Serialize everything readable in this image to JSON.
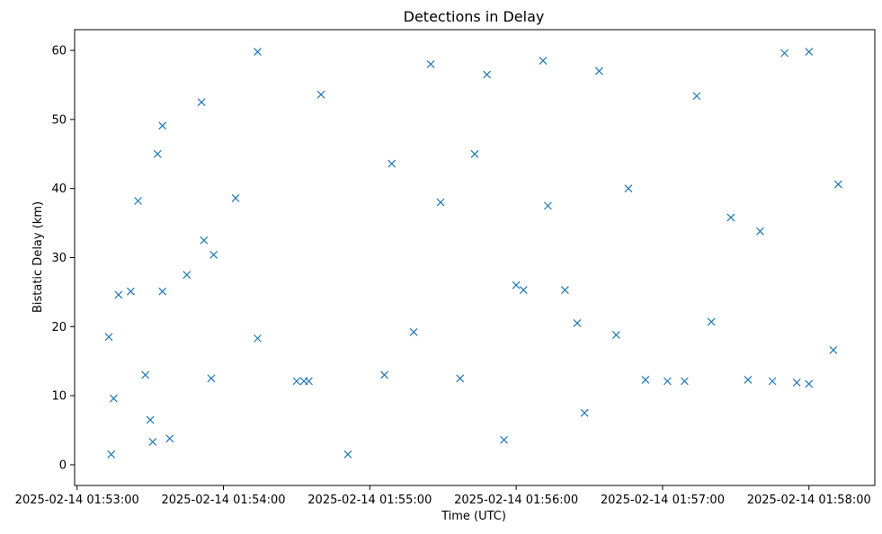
{
  "chart_data": {
    "type": "scatter",
    "title": "Detections in Delay",
    "xlabel": "Time (UTC)",
    "ylabel": "Bistatic Delay (km)",
    "marker": "x",
    "marker_color": "#1f77b4",
    "grid": false,
    "legend": null,
    "xlim": [
      "2025-02-14 01:52:59",
      "2025-02-14 01:58:27"
    ],
    "ylim": [
      -3,
      63
    ],
    "x_ticks": [
      "2025-02-14 01:53:00",
      "2025-02-14 01:54:00",
      "2025-02-14 01:55:00",
      "2025-02-14 01:56:00",
      "2025-02-14 01:57:00",
      "2025-02-14 01:58:00"
    ],
    "y_ticks": [
      0,
      10,
      20,
      30,
      40,
      50,
      60
    ],
    "series": [
      {
        "points": [
          [
            "2025-02-14 01:53:14",
            1.5
          ],
          [
            "2025-02-14 01:53:15",
            9.6
          ],
          [
            "2025-02-14 01:53:13",
            18.5
          ],
          [
            "2025-02-14 01:53:17",
            24.6
          ],
          [
            "2025-02-14 01:53:22",
            25.1
          ],
          [
            "2025-02-14 01:53:25",
            38.2
          ],
          [
            "2025-02-14 01:53:28",
            13.0
          ],
          [
            "2025-02-14 01:53:30",
            6.5
          ],
          [
            "2025-02-14 01:53:31",
            3.3
          ],
          [
            "2025-02-14 01:53:33",
            45.0
          ],
          [
            "2025-02-14 01:53:35",
            25.1
          ],
          [
            "2025-02-14 01:53:35",
            49.1
          ],
          [
            "2025-02-14 01:53:38",
            3.8
          ],
          [
            "2025-02-14 01:53:45",
            27.5
          ],
          [
            "2025-02-14 01:53:51",
            52.5
          ],
          [
            "2025-02-14 01:53:52",
            32.5
          ],
          [
            "2025-02-14 01:53:56",
            30.4
          ],
          [
            "2025-02-14 01:53:55",
            12.5
          ],
          [
            "2025-02-14 01:54:05",
            38.6
          ],
          [
            "2025-02-14 01:54:14",
            59.8
          ],
          [
            "2025-02-14 01:54:14",
            18.3
          ],
          [
            "2025-02-14 01:54:30",
            12.1
          ],
          [
            "2025-02-14 01:54:33",
            12.1
          ],
          [
            "2025-02-14 01:54:35",
            12.1
          ],
          [
            "2025-02-14 01:54:40",
            53.6
          ],
          [
            "2025-02-14 01:54:51",
            1.5
          ],
          [
            "2025-02-14 01:55:06",
            13.0
          ],
          [
            "2025-02-14 01:55:09",
            43.6
          ],
          [
            "2025-02-14 01:55:18",
            19.2
          ],
          [
            "2025-02-14 01:55:25",
            58.0
          ],
          [
            "2025-02-14 01:55:29",
            38.0
          ],
          [
            "2025-02-14 01:55:37",
            12.5
          ],
          [
            "2025-02-14 01:55:43",
            45.0
          ],
          [
            "2025-02-14 01:55:48",
            56.5
          ],
          [
            "2025-02-14 01:55:55",
            3.6
          ],
          [
            "2025-02-14 01:56:00",
            26.0
          ],
          [
            "2025-02-14 01:56:03",
            25.3
          ],
          [
            "2025-02-14 01:56:11",
            58.5
          ],
          [
            "2025-02-14 01:56:13",
            37.5
          ],
          [
            "2025-02-14 01:56:20",
            25.3
          ],
          [
            "2025-02-14 01:56:25",
            20.5
          ],
          [
            "2025-02-14 01:56:28",
            7.5
          ],
          [
            "2025-02-14 01:56:34",
            57.0
          ],
          [
            "2025-02-14 01:56:41",
            18.8
          ],
          [
            "2025-02-14 01:56:46",
            40.0
          ],
          [
            "2025-02-14 01:56:53",
            12.3
          ],
          [
            "2025-02-14 01:57:02",
            12.1
          ],
          [
            "2025-02-14 01:57:09",
            12.1
          ],
          [
            "2025-02-14 01:57:14",
            53.4
          ],
          [
            "2025-02-14 01:57:20",
            20.7
          ],
          [
            "2025-02-14 01:57:28",
            35.8
          ],
          [
            "2025-02-14 01:57:35",
            12.3
          ],
          [
            "2025-02-14 01:57:40",
            33.8
          ],
          [
            "2025-02-14 01:57:45",
            12.1
          ],
          [
            "2025-02-14 01:57:50",
            59.6
          ],
          [
            "2025-02-14 01:57:55",
            11.9
          ],
          [
            "2025-02-14 01:58:00",
            11.7
          ],
          [
            "2025-02-14 01:58:00",
            59.8
          ],
          [
            "2025-02-14 01:58:10",
            16.6
          ],
          [
            "2025-02-14 01:58:12",
            40.6
          ]
        ]
      }
    ]
  }
}
